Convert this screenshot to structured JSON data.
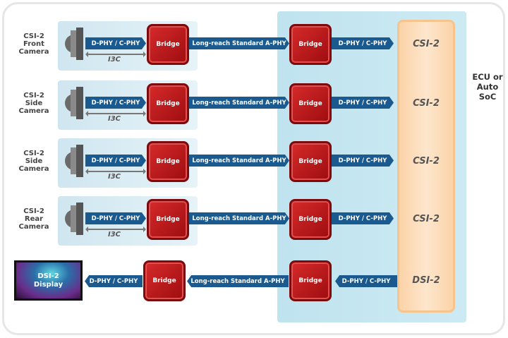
{
  "ecu_label": "ECU or Auto SoC",
  "bridge_label": "Bridge",
  "phy_label": "D-PHY / C-PHY",
  "long_reach_label": "Long-reach Standard A-PHY",
  "i3c_label": "I3C",
  "cameras": [
    {
      "label": "CSI-2 Front Camera",
      "soc_port": "CSI-2"
    },
    {
      "label": "CSI-2 Side Camera",
      "soc_port": "CSI-2"
    },
    {
      "label": "CSI-2 Side Camera",
      "soc_port": "CSI-2"
    },
    {
      "label": "CSI-2 Rear Camera",
      "soc_port": "CSI-2"
    }
  ],
  "display": {
    "label_line1": "DSI-2",
    "label_line2": "Display",
    "soc_port": "DSI-2"
  }
}
